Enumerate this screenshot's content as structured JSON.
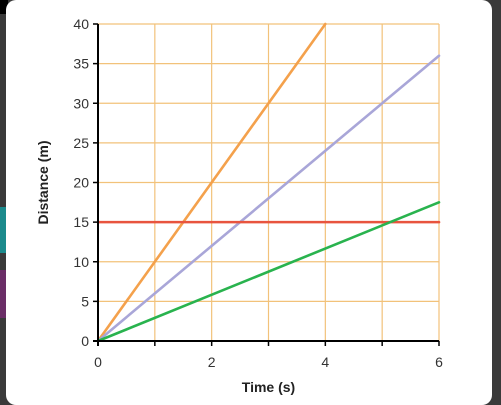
{
  "chart_data": {
    "type": "line",
    "title": "",
    "xlabel": "Time (s)",
    "ylabel": "Distance (m)",
    "xlim": [
      0,
      6
    ],
    "ylim": [
      0,
      40
    ],
    "x_ticks": [
      0,
      2,
      4,
      6
    ],
    "y_ticks": [
      0,
      5,
      10,
      15,
      20,
      25,
      30,
      35,
      40
    ],
    "x_grid": [
      1,
      2,
      3,
      4,
      5,
      6
    ],
    "grid": true,
    "legend": "none",
    "series": [
      {
        "color": "#f4a14c",
        "x": [
          0,
          4
        ],
        "y": [
          0,
          40
        ]
      },
      {
        "color": "#a9a6d8",
        "x": [
          0,
          6
        ],
        "y": [
          0,
          36
        ]
      },
      {
        "color": "#e8543e",
        "x": [
          0,
          6
        ],
        "y": [
          15,
          15
        ]
      },
      {
        "color": "#29b34e",
        "x": [
          0,
          6
        ],
        "y": [
          0,
          17.5
        ]
      }
    ],
    "colors": {
      "grid": "#f2c27a",
      "axis": "#000000",
      "background": "#ffffff"
    }
  }
}
